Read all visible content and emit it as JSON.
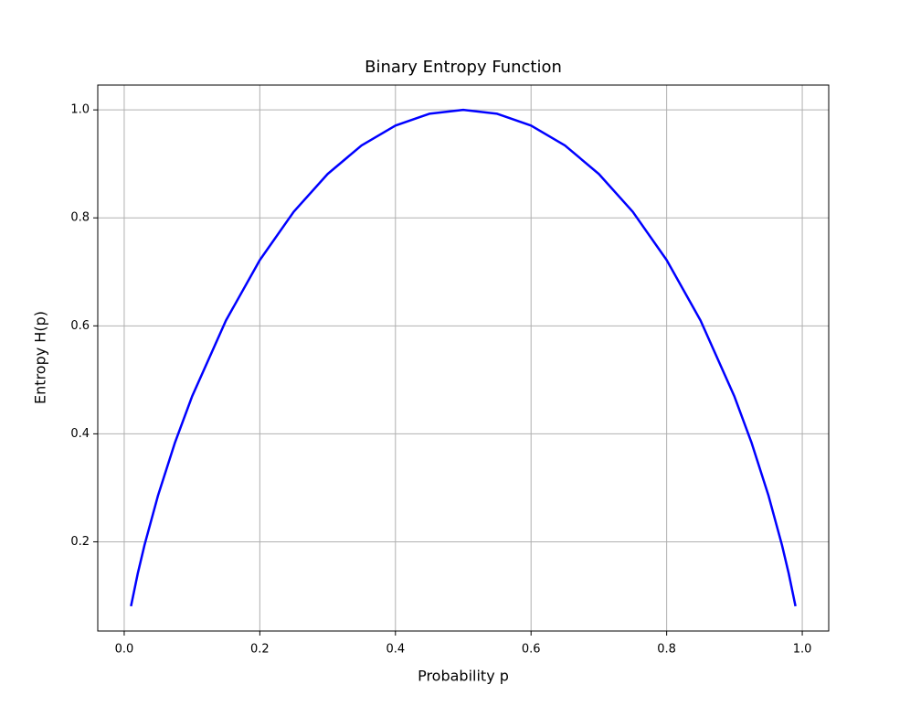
{
  "chart_data": {
    "type": "line",
    "title": "Binary Entropy Function",
    "x_label": "Probability p",
    "y_label": "Entropy H(p)",
    "x": [
      0.01,
      0.02,
      0.03,
      0.05,
      0.075,
      0.1,
      0.15,
      0.2,
      0.25,
      0.3,
      0.35,
      0.4,
      0.45,
      0.5,
      0.55,
      0.6,
      0.65,
      0.7,
      0.75,
      0.8,
      0.85,
      0.9,
      0.925,
      0.95,
      0.97,
      0.98,
      0.99
    ],
    "series": [
      {
        "color": "#0000ff",
        "values": [
          0.0808,
          0.1414,
          0.1944,
          0.2864,
          0.3843,
          0.469,
          0.6098,
          0.7219,
          0.8113,
          0.8813,
          0.9341,
          0.971,
          0.9928,
          1.0,
          0.9928,
          0.971,
          0.9341,
          0.8813,
          0.8113,
          0.7219,
          0.6098,
          0.469,
          0.3843,
          0.2864,
          0.1944,
          0.1414,
          0.0808
        ]
      }
    ],
    "xlim": [
      -0.039,
      1.039
    ],
    "ylim": [
      0.0348,
      1.046
    ],
    "xticks": [
      {
        "value": 0,
        "label": "0.0"
      },
      0.2,
      0.4,
      0.6,
      0.8,
      {
        "value": 1,
        "label": "1.0"
      }
    ],
    "yticks": [
      0.2,
      0.4,
      0.6,
      0.8,
      {
        "value": 1,
        "label": "1.0"
      }
    ],
    "grid": true
  }
}
